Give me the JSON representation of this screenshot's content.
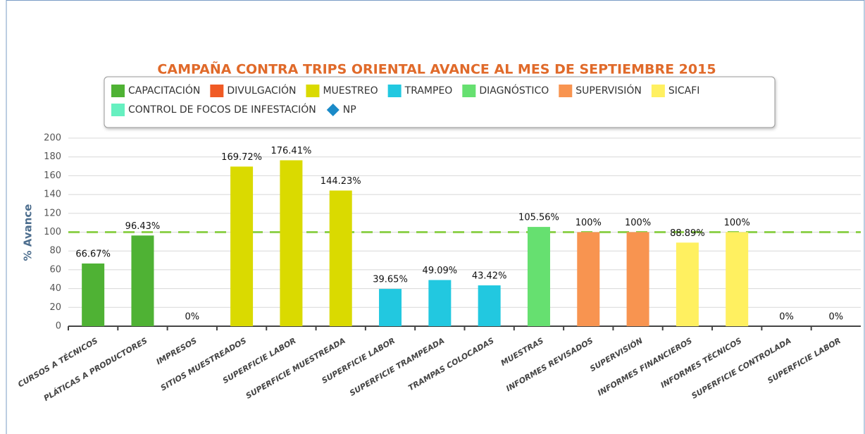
{
  "chart_data": {
    "type": "bar",
    "title": "CAMPAÑA CONTRA TRIPS ORIENTAL AVANCE AL MES DE SEPTIEMBRE 2015",
    "y_axis_title": "% Avance",
    "categories": [
      "CURSOS A TÉCNICOS",
      "PLÁTICAS A PRODUCTORES",
      "IMPRESOS",
      "SITIOS MUESTREADOS",
      "SUPERFICIE LABOR",
      "SUPERFICIE MUESTREADA",
      "SUPERFICIE LABOR",
      "SUPERFICIE TRAMPEADA",
      "TRAMPAS COLOCADAS",
      "MUESTRAS",
      "INFORMES REVISADOS",
      "SUPERVISIÓN",
      "INFORMES FINANCIEROS",
      "INFORMES TÉCNICOS",
      "SUPERFICIE CONTROLADA",
      "SUPERFICIE LABOR"
    ],
    "ylim": [
      0,
      200
    ],
    "yticks": [
      0,
      20,
      40,
      60,
      80,
      100,
      120,
      140,
      160,
      180,
      200
    ],
    "grid": true,
    "reference_line": {
      "value": 100,
      "color": "#8fd14f"
    },
    "series": [
      {
        "name": "CAPACITACIÓN",
        "color": "#4fb234",
        "values": [
          66.67,
          96.43,
          null,
          null,
          null,
          null,
          null,
          null,
          null,
          null,
          null,
          null,
          null,
          null,
          null,
          null
        ],
        "value_labels": [
          "66.67%",
          "96.43%",
          null,
          null,
          null,
          null,
          null,
          null,
          null,
          null,
          null,
          null,
          null,
          null,
          null,
          null
        ]
      },
      {
        "name": "DIVULGACIÓN",
        "color": "#f05a24",
        "values": [
          null,
          null,
          0,
          null,
          null,
          null,
          null,
          null,
          null,
          null,
          null,
          null,
          null,
          null,
          null,
          null
        ],
        "value_labels": [
          null,
          null,
          "0%",
          null,
          null,
          null,
          null,
          null,
          null,
          null,
          null,
          null,
          null,
          null,
          null,
          null
        ]
      },
      {
        "name": "MUESTREO",
        "color": "#dada00",
        "values": [
          null,
          null,
          null,
          169.72,
          176.41,
          144.23,
          null,
          null,
          null,
          null,
          null,
          null,
          null,
          null,
          null,
          null
        ],
        "value_labels": [
          null,
          null,
          null,
          "169.72%",
          "176.41%",
          "144.23%",
          null,
          null,
          null,
          null,
          null,
          null,
          null,
          null,
          null,
          null
        ]
      },
      {
        "name": "TRAMPEO",
        "color": "#22c8e0",
        "values": [
          null,
          null,
          null,
          null,
          null,
          null,
          39.65,
          49.09,
          43.42,
          null,
          null,
          null,
          null,
          null,
          null,
          null
        ],
        "value_labels": [
          null,
          null,
          null,
          null,
          null,
          null,
          "39.65%",
          "49.09%",
          "43.42%",
          null,
          null,
          null,
          null,
          null,
          null,
          null
        ]
      },
      {
        "name": "DIAGNÓSTICO",
        "color": "#66e070",
        "values": [
          null,
          null,
          null,
          null,
          null,
          null,
          null,
          null,
          null,
          105.56,
          null,
          null,
          null,
          null,
          null,
          null
        ],
        "value_labels": [
          null,
          null,
          null,
          null,
          null,
          null,
          null,
          null,
          null,
          "105.56%",
          null,
          null,
          null,
          null,
          null,
          null
        ]
      },
      {
        "name": "SUPERVISIÓN",
        "color": "#f89450",
        "values": [
          null,
          null,
          null,
          null,
          null,
          null,
          null,
          null,
          null,
          null,
          100,
          100,
          null,
          null,
          null,
          null
        ],
        "value_labels": [
          null,
          null,
          null,
          null,
          null,
          null,
          null,
          null,
          null,
          null,
          "100%",
          "100%",
          null,
          null,
          null,
          null
        ]
      },
      {
        "name": "SICAFI",
        "color": "#fff060",
        "values": [
          null,
          null,
          null,
          null,
          null,
          null,
          null,
          null,
          null,
          null,
          null,
          null,
          88.89,
          100,
          null,
          null
        ],
        "value_labels": [
          null,
          null,
          null,
          null,
          null,
          null,
          null,
          null,
          null,
          null,
          null,
          null,
          "88.89%",
          "100%",
          null,
          null
        ]
      },
      {
        "name": "CONTROL DE FOCOS DE INFESTACIÓN",
        "color": "#66f0c0",
        "values": [
          null,
          null,
          null,
          null,
          null,
          null,
          null,
          null,
          null,
          null,
          null,
          null,
          null,
          null,
          0,
          0
        ],
        "value_labels": [
          null,
          null,
          null,
          null,
          null,
          null,
          null,
          null,
          null,
          null,
          null,
          null,
          null,
          null,
          "0%",
          "0%"
        ]
      },
      {
        "name": "NP",
        "color": "#1a8ac8",
        "marker": "diamond",
        "values": [
          null,
          null,
          null,
          null,
          null,
          null,
          null,
          null,
          null,
          null,
          null,
          null,
          null,
          null,
          null,
          null
        ]
      }
    ]
  }
}
